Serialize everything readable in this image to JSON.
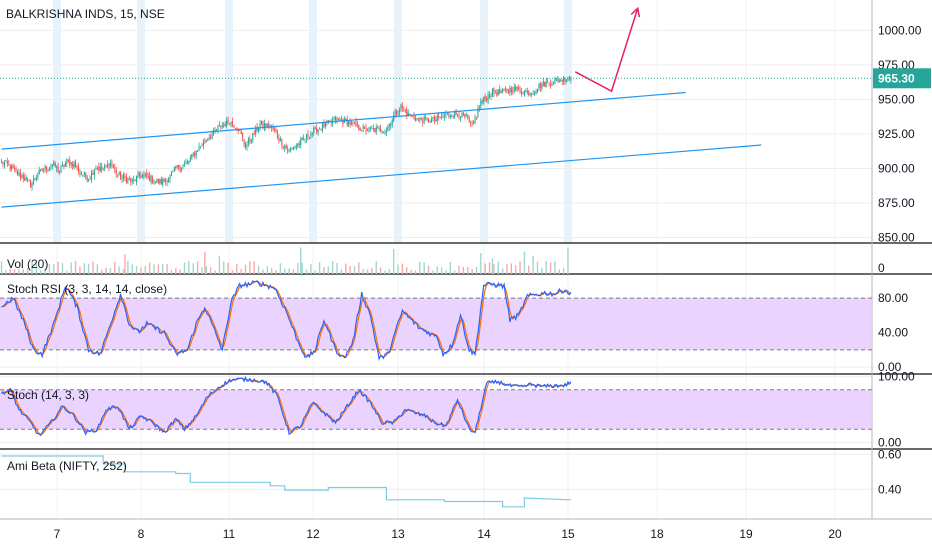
{
  "chart_data": {
    "type": "multi-pane",
    "symbol_title": "BALKRISHNA INDS, 15, NSE",
    "x_tick_labels": [
      "7",
      "8",
      "11",
      "12",
      "13",
      "14",
      "15",
      "18",
      "19",
      "20"
    ],
    "colors": {
      "up": "#26a69a",
      "down": "#ef5350",
      "channel": "#2196f3",
      "arrow": "#e91e63",
      "price_line": "#26a69a",
      "stoch_k": "#2962ff",
      "stoch_d": "#ff6d00",
      "band_fill": "#e6ccff",
      "beta_line": "#80cbe4",
      "session_highlight": "#e3f2fd",
      "grid": "#eeeeee",
      "separator": "#111111"
    },
    "panes": [
      {
        "id": "price",
        "label": "BALKRISHNA INDS, 15, NSE",
        "type": "candlestick",
        "y_ticks": [
          "1000.00",
          "975.00",
          "950.00",
          "925.00",
          "900.00",
          "875.00",
          "850.00"
        ],
        "y_tick_values": [
          1000,
          975,
          950,
          925,
          900,
          875,
          850
        ],
        "ylim": [
          846,
          1022
        ],
        "last_price": "965.30",
        "last_value": 965.3,
        "anchors": [
          [
            0,
            905
          ],
          [
            5,
            902
          ],
          [
            10,
            897
          ],
          [
            15,
            894
          ],
          [
            20,
            888
          ],
          [
            25,
            896
          ],
          [
            30,
            900
          ],
          [
            35,
            903
          ],
          [
            40,
            898
          ],
          [
            45,
            905
          ],
          [
            50,
            903
          ],
          [
            55,
            896
          ],
          [
            60,
            893
          ],
          [
            65,
            901
          ],
          [
            70,
            899
          ],
          [
            75,
            904
          ],
          [
            80,
            895
          ],
          [
            85,
            893
          ],
          [
            90,
            890
          ],
          [
            95,
            895
          ],
          [
            100,
            894
          ],
          [
            105,
            891
          ],
          [
            110,
            890
          ],
          [
            115,
            893
          ],
          [
            120,
            900
          ],
          [
            128,
            904
          ],
          [
            135,
            914
          ],
          [
            142,
            922
          ],
          [
            150,
            930
          ],
          [
            157,
            934
          ],
          [
            163,
            929
          ],
          [
            168,
            916
          ],
          [
            172,
            922
          ],
          [
            178,
            932
          ],
          [
            186,
            930
          ],
          [
            192,
            920
          ],
          [
            198,
            912
          ],
          [
            205,
            918
          ],
          [
            212,
            925
          ],
          [
            220,
            930
          ],
          [
            230,
            935
          ],
          [
            238,
            934
          ],
          [
            245,
            930
          ],
          [
            252,
            928
          ],
          [
            260,
            928
          ],
          [
            265,
            928
          ],
          [
            270,
            938
          ],
          [
            275,
            945
          ],
          [
            280,
            939
          ],
          [
            285,
            936
          ],
          [
            292,
            935
          ],
          [
            298,
            935
          ],
          [
            305,
            938
          ],
          [
            312,
            940
          ],
          [
            320,
            936
          ],
          [
            324,
            930
          ],
          [
            330,
            948
          ],
          [
            338,
            955
          ],
          [
            345,
            955
          ],
          [
            352,
            958
          ],
          [
            358,
            956
          ],
          [
            365,
            955
          ],
          [
            372,
            961
          ],
          [
            379,
            963
          ],
          [
            385,
            964
          ],
          [
            390,
            966
          ],
          [
            392,
            965.3
          ]
        ],
        "channel_lines": [
          {
            "from": [
              0,
              914
            ],
            "to": [
              471,
              955
            ]
          },
          {
            "from": [
              0,
              872
            ],
            "to": [
              523,
              917
            ]
          }
        ],
        "arrow_path": [
          [
            395,
            970
          ],
          [
            420,
            956
          ],
          [
            438,
            1016
          ]
        ]
      },
      {
        "id": "volume",
        "label": "Vol (20)",
        "type": "volume",
        "y_ticks": [
          "0"
        ],
        "y_tick_values": [
          0
        ],
        "ylim": [
          0,
          1
        ],
        "spikes": [
          [
            85,
            0.7
          ],
          [
            140,
            0.8
          ],
          [
            150,
            0.65
          ],
          [
            206,
            0.95
          ],
          [
            270,
            0.9
          ],
          [
            330,
            0.75
          ],
          [
            338,
            0.55
          ],
          [
            360,
            0.8
          ],
          [
            366,
            0.65
          ],
          [
            390,
            0.95
          ]
        ]
      },
      {
        "id": "stoch_rsi",
        "label": "Stoch RSI (3, 3, 14, 14, close)",
        "type": "oscillator",
        "y_ticks": [
          "80.00",
          "40.00",
          "0.00"
        ],
        "y_tick_values": [
          80,
          40,
          0
        ],
        "ylim": [
          -8,
          108
        ],
        "band": [
          20,
          80
        ],
        "k_anchors": [
          [
            0,
            70
          ],
          [
            8,
            80
          ],
          [
            16,
            50
          ],
          [
            22,
            20
          ],
          [
            28,
            15
          ],
          [
            36,
            50
          ],
          [
            44,
            95
          ],
          [
            52,
            70
          ],
          [
            60,
            20
          ],
          [
            68,
            15
          ],
          [
            74,
            45
          ],
          [
            82,
            85
          ],
          [
            88,
            50
          ],
          [
            94,
            40
          ],
          [
            100,
            50
          ],
          [
            106,
            45
          ],
          [
            112,
            40
          ],
          [
            120,
            15
          ],
          [
            128,
            20
          ],
          [
            134,
            50
          ],
          [
            140,
            70
          ],
          [
            146,
            45
          ],
          [
            152,
            20
          ],
          [
            158,
            75
          ],
          [
            164,
            95
          ],
          [
            170,
            96
          ],
          [
            176,
            98
          ],
          [
            182,
            95
          ],
          [
            188,
            92
          ],
          [
            196,
            65
          ],
          [
            204,
            30
          ],
          [
            210,
            10
          ],
          [
            216,
            20
          ],
          [
            222,
            55
          ],
          [
            230,
            20
          ],
          [
            236,
            10
          ],
          [
            242,
            30
          ],
          [
            248,
            85
          ],
          [
            254,
            60
          ],
          [
            260,
            10
          ],
          [
            266,
            15
          ],
          [
            276,
            65
          ],
          [
            282,
            55
          ],
          [
            288,
            45
          ],
          [
            294,
            40
          ],
          [
            300,
            35
          ],
          [
            304,
            15
          ],
          [
            310,
            25
          ],
          [
            316,
            60
          ],
          [
            322,
            20
          ],
          [
            326,
            15
          ],
          [
            332,
            95
          ],
          [
            338,
            96
          ],
          [
            346,
            94
          ],
          [
            350,
            55
          ],
          [
            356,
            60
          ],
          [
            362,
            82
          ],
          [
            368,
            84
          ],
          [
            374,
            86
          ],
          [
            380,
            85
          ],
          [
            388,
            90
          ],
          [
            392,
            84
          ]
        ]
      },
      {
        "id": "stoch",
        "label": "Stoch (14, 3, 3)",
        "type": "oscillator",
        "y_ticks": [
          "100.00",
          "0.00"
        ],
        "y_tick_values": [
          100,
          0
        ],
        "ylim": [
          -10,
          104
        ],
        "band": [
          20,
          80
        ],
        "k_anchors": [
          [
            0,
            75
          ],
          [
            6,
            80
          ],
          [
            12,
            50
          ],
          [
            20,
            30
          ],
          [
            26,
            10
          ],
          [
            34,
            30
          ],
          [
            42,
            55
          ],
          [
            50,
            40
          ],
          [
            58,
            15
          ],
          [
            66,
            20
          ],
          [
            72,
            50
          ],
          [
            80,
            55
          ],
          [
            88,
            20
          ],
          [
            96,
            40
          ],
          [
            104,
            30
          ],
          [
            112,
            15
          ],
          [
            120,
            35
          ],
          [
            126,
            20
          ],
          [
            134,
            40
          ],
          [
            142,
            70
          ],
          [
            150,
            85
          ],
          [
            158,
            95
          ],
          [
            166,
            96
          ],
          [
            174,
            95
          ],
          [
            182,
            92
          ],
          [
            190,
            70
          ],
          [
            198,
            15
          ],
          [
            206,
            25
          ],
          [
            214,
            60
          ],
          [
            222,
            45
          ],
          [
            230,
            30
          ],
          [
            238,
            55
          ],
          [
            246,
            80
          ],
          [
            254,
            60
          ],
          [
            262,
            30
          ],
          [
            270,
            30
          ],
          [
            278,
            50
          ],
          [
            284,
            45
          ],
          [
            292,
            40
          ],
          [
            298,
            30
          ],
          [
            306,
            25
          ],
          [
            314,
            65
          ],
          [
            322,
            20
          ],
          [
            326,
            15
          ],
          [
            334,
            90
          ],
          [
            342,
            92
          ],
          [
            350,
            86
          ],
          [
            358,
            84
          ],
          [
            364,
            88
          ],
          [
            372,
            85
          ],
          [
            380,
            86
          ],
          [
            388,
            87
          ],
          [
            392,
            92
          ]
        ]
      },
      {
        "id": "ami_beta",
        "label": "Ami Beta (NIFTY, 252)",
        "type": "line",
        "y_ticks": [
          "0.60",
          "0.40"
        ],
        "y_tick_values": [
          0.6,
          0.4
        ],
        "ylim": [
          0.23,
          0.63
        ],
        "steps": [
          [
            0,
            0.59
          ],
          [
            70,
            0.59
          ],
          [
            70,
            0.545
          ],
          [
            85,
            0.545
          ],
          [
            85,
            0.5
          ],
          [
            120,
            0.5
          ],
          [
            120,
            0.49
          ],
          [
            130,
            0.49
          ],
          [
            130,
            0.44
          ],
          [
            185,
            0.44
          ],
          [
            185,
            0.42
          ],
          [
            195,
            0.42
          ],
          [
            195,
            0.395
          ],
          [
            225,
            0.395
          ],
          [
            225,
            0.41
          ],
          [
            265,
            0.41
          ],
          [
            265,
            0.34
          ],
          [
            305,
            0.34
          ],
          [
            305,
            0.33
          ],
          [
            345,
            0.33
          ],
          [
            345,
            0.3
          ],
          [
            360,
            0.3
          ],
          [
            360,
            0.35
          ],
          [
            392,
            0.34
          ]
        ]
      }
    ]
  }
}
